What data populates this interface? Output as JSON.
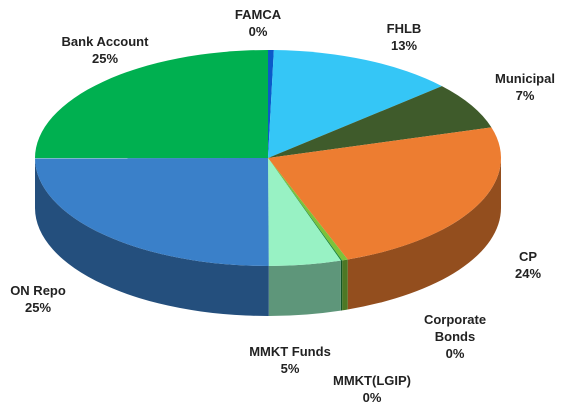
{
  "chart_data": {
    "type": "pie3d",
    "categories": [
      "FAMCA",
      "FHLB",
      "Municipal",
      "CP",
      "Corporate Bonds",
      "MMKT(LGIP)",
      "MMKT Funds",
      "ON Repo",
      "Bank Account"
    ],
    "values": [
      0.4,
      13,
      7,
      24,
      0.4,
      0.1,
      5,
      25,
      25
    ],
    "value_labels": [
      "0%",
      "13%",
      "7%",
      "24%",
      "0%",
      "0%",
      "5%",
      "25%",
      "25%"
    ],
    "colors": [
      "#0b59c9",
      "#35c6f6",
      "#3f5b2b",
      "#ed7d31",
      "#7cc23a",
      "#1e8c3a",
      "#98f2c4",
      "#3a80c9",
      "#00b050"
    ]
  }
}
